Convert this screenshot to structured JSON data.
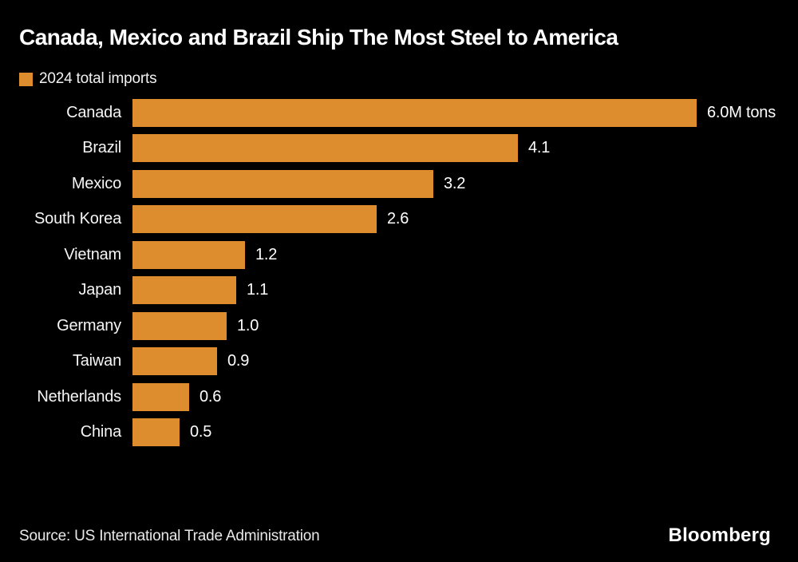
{
  "title": "Canada, Mexico and Brazil Ship The Most Steel to America",
  "legend": {
    "label": "2024 total imports",
    "swatch_icon": "legend-swatch-square",
    "swatch_color": "#DD8C2E"
  },
  "footer": {
    "source": "Source: US International Trade Administration",
    "branding": "Bloomberg"
  },
  "colors": {
    "background": "#000000",
    "bar": "#DD8C2E",
    "title_text": "#FFFFFF",
    "label_text": "#F5F5F5",
    "value_text": "#FFFFFF",
    "source_text": "#E9E9E9"
  },
  "chart_data": {
    "type": "bar",
    "orientation": "horizontal",
    "title": "Canada, Mexico and Brazil Ship The Most Steel to America",
    "legend_entries": [
      "2024 total imports"
    ],
    "legend_position": "top-left",
    "categories": [
      "Canada",
      "Brazil",
      "Mexico",
      "South Korea",
      "Vietnam",
      "Japan",
      "Germany",
      "Taiwan",
      "Netherlands",
      "China"
    ],
    "values": [
      6.0,
      4.1,
      3.2,
      2.6,
      1.2,
      1.1,
      1.0,
      0.9,
      0.6,
      0.5
    ],
    "value_labels": [
      "6.0M tons",
      "4.1",
      "3.2",
      "2.6",
      "1.2",
      "1.1",
      "1.0",
      "0.9",
      "0.6",
      "0.5"
    ],
    "unit": "M tons",
    "xlabel": "",
    "ylabel": "",
    "xlim": [
      0,
      6.0
    ],
    "grid": false,
    "bar_color": "#DD8C2E",
    "source": "Source: US International Trade Administration"
  }
}
